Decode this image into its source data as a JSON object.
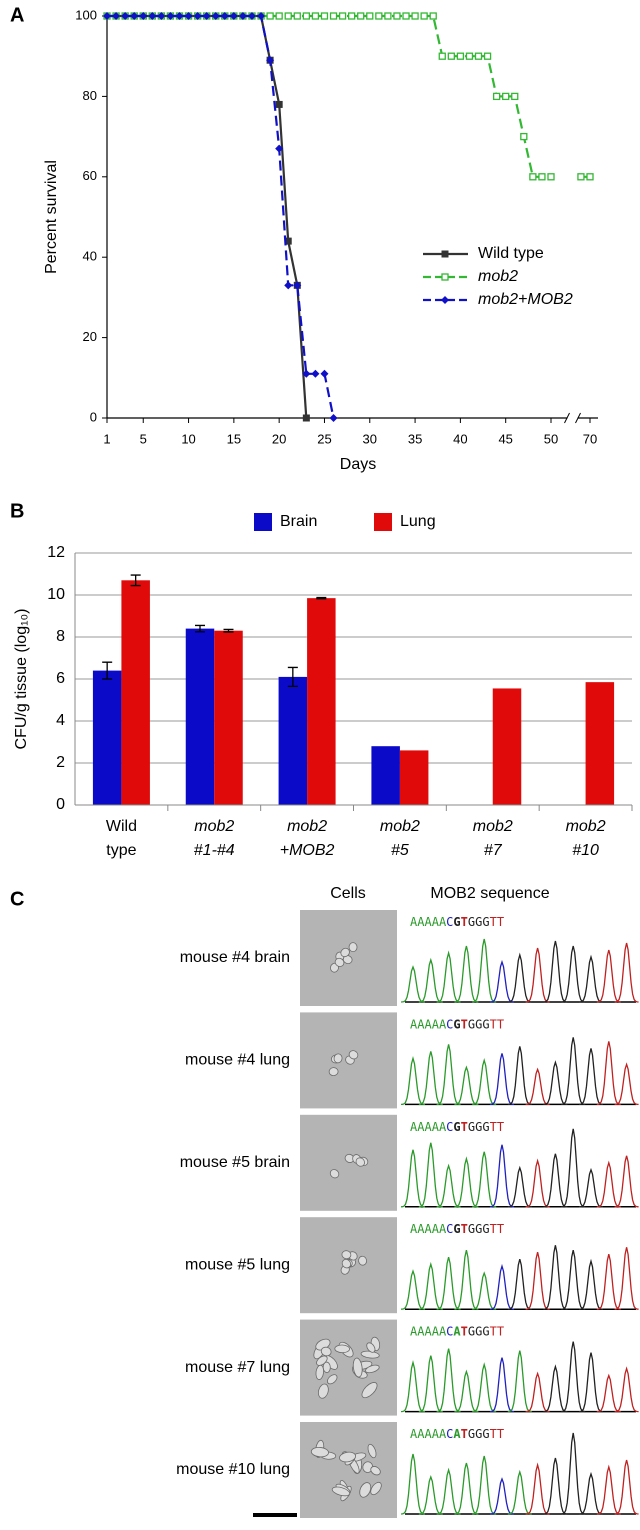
{
  "chart_data": [
    {
      "type": "line",
      "panel": "A",
      "xlabel": "Days",
      "ylabel": "Percent survival",
      "x": [
        1,
        2,
        3,
        4,
        5,
        6,
        7,
        8,
        9,
        10,
        11,
        12,
        13,
        14,
        15,
        16,
        17,
        18,
        19,
        20,
        21,
        22,
        23,
        24,
        25,
        26,
        27,
        28,
        29,
        30,
        31,
        32,
        33,
        34,
        35,
        36,
        37,
        38,
        39,
        40,
        41,
        42,
        43,
        44,
        45,
        46,
        47,
        48,
        49,
        50,
        69,
        70
      ],
      "xlim": [
        1,
        70
      ],
      "xticks": [
        1,
        5,
        10,
        15,
        20,
        25,
        30,
        35,
        40,
        45,
        50,
        70
      ],
      "ylim": [
        0,
        100
      ],
      "yticks": [
        0,
        20,
        40,
        60,
        80,
        100
      ],
      "grid": false,
      "legend": "right",
      "series": [
        {
          "name": "Wild type",
          "color": "#333333",
          "marker": "square",
          "dashed": false,
          "values": [
            100,
            100,
            100,
            100,
            100,
            100,
            100,
            100,
            100,
            100,
            100,
            100,
            100,
            100,
            100,
            100,
            100,
            100,
            89,
            78,
            44,
            33,
            0,
            null,
            null,
            null,
            null,
            null,
            null,
            null,
            null,
            null,
            null,
            null,
            null,
            null,
            null,
            null,
            null,
            null,
            null,
            null,
            null,
            null,
            null,
            null,
            null,
            null,
            null,
            null,
            null,
            null
          ]
        },
        {
          "name": "mob2",
          "color": "#33b833",
          "marker": "open-square",
          "dashed": true,
          "values": [
            100,
            100,
            100,
            100,
            100,
            100,
            100,
            100,
            100,
            100,
            100,
            100,
            100,
            100,
            100,
            100,
            100,
            100,
            100,
            100,
            100,
            100,
            100,
            100,
            100,
            100,
            100,
            100,
            100,
            100,
            100,
            100,
            100,
            100,
            100,
            100,
            100,
            90,
            90,
            90,
            90,
            90,
            90,
            80,
            80,
            80,
            70,
            60,
            60,
            60,
            60,
            60
          ]
        },
        {
          "name": "mob2+MOB2",
          "color": "#1010c8",
          "marker": "diamond",
          "dashed": true,
          "values": [
            100,
            100,
            100,
            100,
            100,
            100,
            100,
            100,
            100,
            100,
            100,
            100,
            100,
            100,
            100,
            100,
            100,
            100,
            89,
            67,
            33,
            33,
            11,
            11,
            11,
            0,
            null,
            null,
            null,
            null,
            null,
            null,
            null,
            null,
            null,
            null,
            null,
            null,
            null,
            null,
            null,
            null,
            null,
            null,
            null,
            null,
            null,
            null,
            null,
            null,
            null,
            null
          ]
        }
      ]
    },
    {
      "type": "bar",
      "panel": "B",
      "ylabel": "CFU/g tissue (log₁₀)",
      "categories": [
        [
          "Wild",
          "type"
        ],
        [
          "mob2",
          "#1-#4"
        ],
        [
          "mob2",
          "+MOB2"
        ],
        [
          "mob2",
          "#5"
        ],
        [
          "mob2",
          "#7"
        ],
        [
          "mob2",
          "#10"
        ]
      ],
      "ylim": [
        0,
        12
      ],
      "yticks": [
        0,
        2,
        4,
        6,
        8,
        10,
        12
      ],
      "grid": true,
      "legend": "top",
      "series": [
        {
          "name": "Brain",
          "color": "#0a0ac8",
          "values": [
            6.4,
            8.4,
            6.1,
            2.8,
            null,
            null
          ],
          "errors": [
            0.4,
            0.15,
            0.45,
            null,
            null,
            null
          ]
        },
        {
          "name": "Lung",
          "color": "#e00a0a",
          "values": [
            10.7,
            8.3,
            9.85,
            2.6,
            5.55,
            5.85
          ],
          "errors": [
            0.25,
            0.06,
            0.03,
            null,
            null,
            null
          ]
        }
      ]
    }
  ],
  "panel_c": {
    "label": "C",
    "columns": [
      "Cells",
      "MOB2 sequence"
    ],
    "rows": [
      {
        "label": "mouse #4 brain",
        "sequence": "AAAAACGTGGGTT"
      },
      {
        "label": "mouse #4 lung",
        "sequence": "AAAAACGTGGGTT"
      },
      {
        "label": "mouse #5 brain",
        "sequence": "AAAAACGTGGGTT"
      },
      {
        "label": "mouse #5 lung",
        "sequence": "AAAAACGTGGGTT"
      },
      {
        "label": "mouse #7 lung",
        "sequence": "AAAAACATGGGTT"
      },
      {
        "label": "mouse #10 lung",
        "sequence": "AAAAACATGGGTT"
      }
    ]
  }
}
